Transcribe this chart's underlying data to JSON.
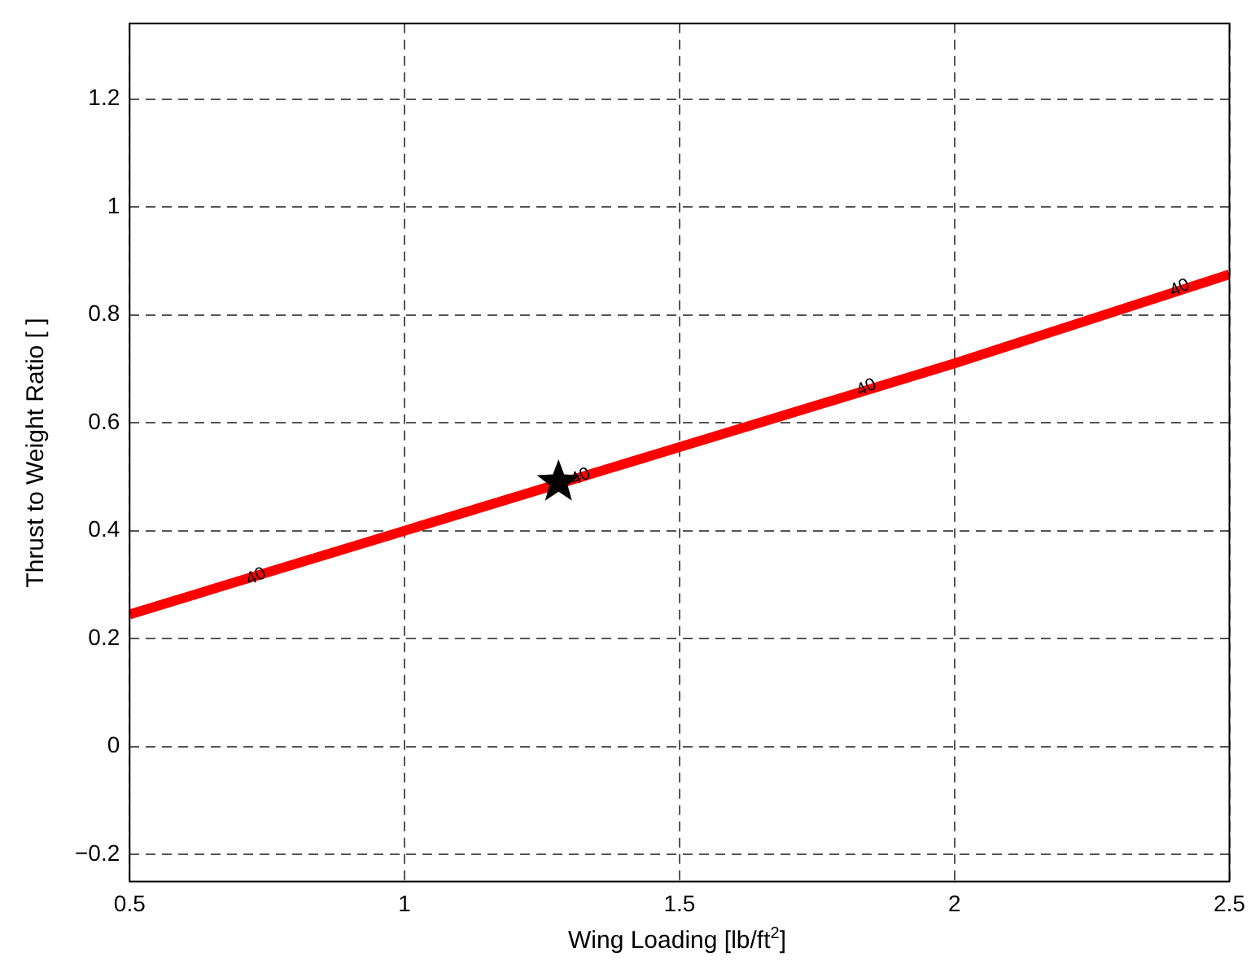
{
  "chart_data": {
    "type": "line",
    "xlabel": "Wing Loading [lb/ft$^{2}$]",
    "ylabel": "Thrust to Weight Ratio [ ]",
    "xlim": [
      0.5,
      2.5
    ],
    "xticks": [
      0.5,
      1,
      1.5,
      2,
      2.5
    ],
    "ylim": [
      -0.25,
      1.34
    ],
    "yticks": [
      -0.2,
      0,
      0.2,
      0.4,
      0.6,
      0.8,
      1,
      1.2
    ],
    "grid": true,
    "legend": false,
    "series": [
      {
        "color": "#ff0000",
        "x": [
          0.5,
          1,
          1.5,
          2,
          2.5
        ],
        "values": [
          0.245,
          0.4,
          0.555,
          0.71,
          0.875
        ],
        "marker": "none"
      },
      {
        "type": "scatter",
        "color": "#000000",
        "x": [
          1.28
        ],
        "values": [
          0.49
        ],
        "marker": "star"
      }
    ],
    "annotations": [
      {
        "text": "40",
        "x": 0.73,
        "y": 0.315
      },
      {
        "text": "40",
        "x": 1.32,
        "y": 0.5
      },
      {
        "text": "40",
        "x": 1.84,
        "y": 0.665
      },
      {
        "text": "40",
        "x": 2.41,
        "y": 0.85
      }
    ]
  }
}
